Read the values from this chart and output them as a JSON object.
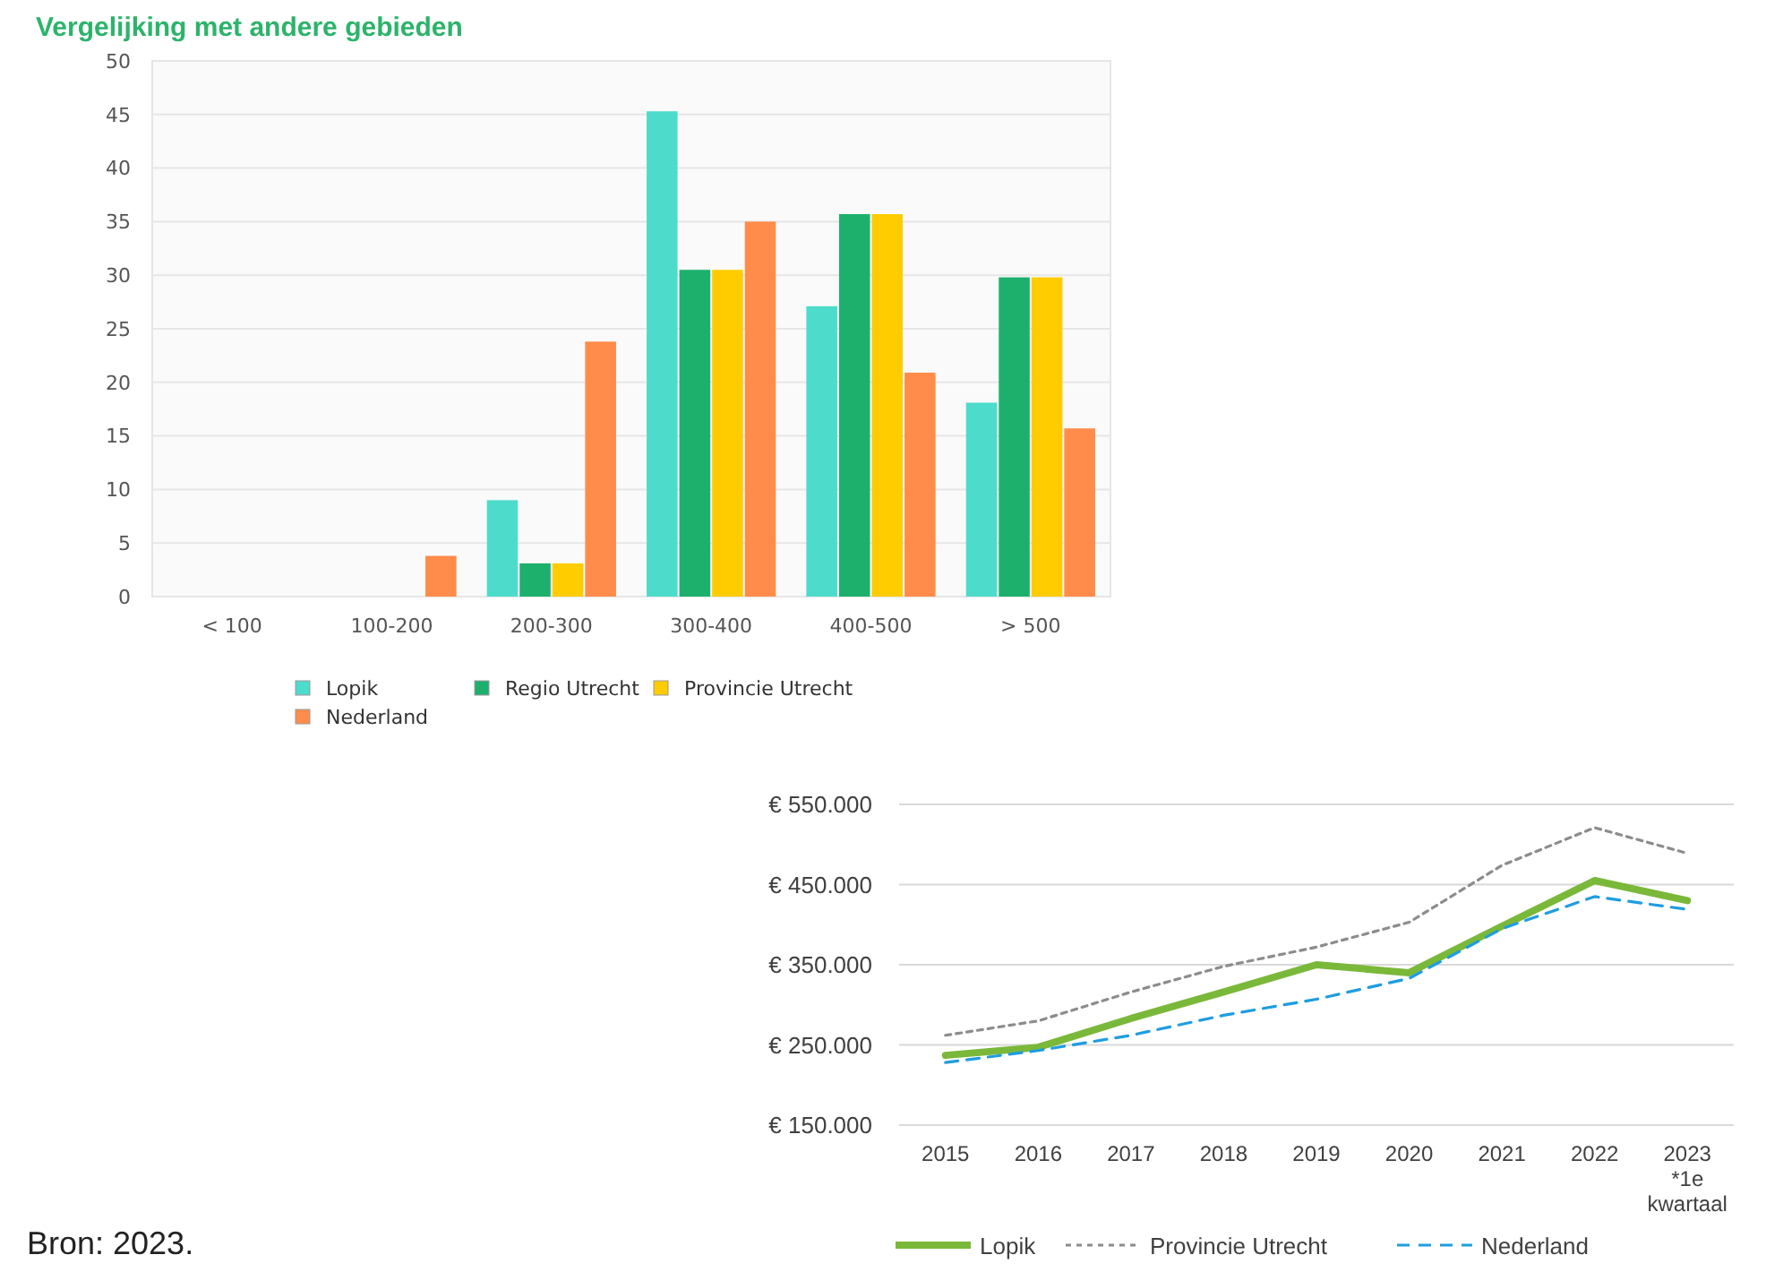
{
  "chart_data": [
    {
      "type": "bar",
      "title": "Vergelijking met andere gebieden",
      "categories": [
        "< 100",
        "100-200",
        "200-300",
        "300-400",
        "400-500",
        "> 500"
      ],
      "series": [
        {
          "name": "Lopik",
          "color": "#4ddccb",
          "values": [
            0,
            0,
            9,
            45.3,
            27.1,
            18.1
          ]
        },
        {
          "name": "Regio Utrecht",
          "color": "#1db06d",
          "values": [
            0,
            0,
            3.1,
            30.5,
            35.7,
            29.8
          ]
        },
        {
          "name": "Provincie Utrecht",
          "color": "#ffcc00",
          "values": [
            0,
            0,
            3.1,
            30.5,
            35.7,
            29.8
          ]
        },
        {
          "name": "Nederland",
          "color": "#ff8c4a",
          "values": [
            0,
            3.8,
            23.8,
            35,
            20.9,
            15.7
          ]
        }
      ],
      "ylim": [
        0,
        50
      ],
      "yticks": [
        0,
        5,
        10,
        15,
        20,
        25,
        30,
        35,
        40,
        45,
        50
      ],
      "grid": "y",
      "legend": "bottom"
    },
    {
      "type": "line",
      "categories": [
        "2015",
        "2016",
        "2017",
        "2018",
        "2019",
        "2020",
        "2021",
        "2022",
        "2023\n*1e\nkwartaal"
      ],
      "series": [
        {
          "name": "Lopik",
          "color": "#7ab83a",
          "line_style": "solid",
          "values": [
            237000,
            247000,
            283000,
            316000,
            350000,
            340000,
            398000,
            455000,
            430000
          ]
        },
        {
          "name": "Provincie Utrecht",
          "color": "#8c8c8c",
          "line_style": "dotted",
          "values": [
            262000,
            280000,
            316000,
            348000,
            372000,
            403000,
            474000,
            521000,
            489000
          ]
        },
        {
          "name": "Nederland",
          "color": "#1e9de0",
          "line_style": "dashed",
          "values": [
            228000,
            243000,
            262000,
            287000,
            307000,
            333000,
            395000,
            435000,
            419000
          ]
        }
      ],
      "ylim": [
        150000,
        550000
      ],
      "yticks": [
        {
          "value": 150000,
          "label": "€ 150.000"
        },
        {
          "value": 250000,
          "label": "€ 250.000"
        },
        {
          "value": 350000,
          "label": "€ 350.000"
        },
        {
          "value": 450000,
          "label": "€ 450.000"
        },
        {
          "value": 550000,
          "label": "€ 550.000"
        }
      ],
      "grid": "y",
      "legend": "bottom",
      "marker": "none",
      "annotations": [
        "Bron: 2023."
      ]
    }
  ]
}
